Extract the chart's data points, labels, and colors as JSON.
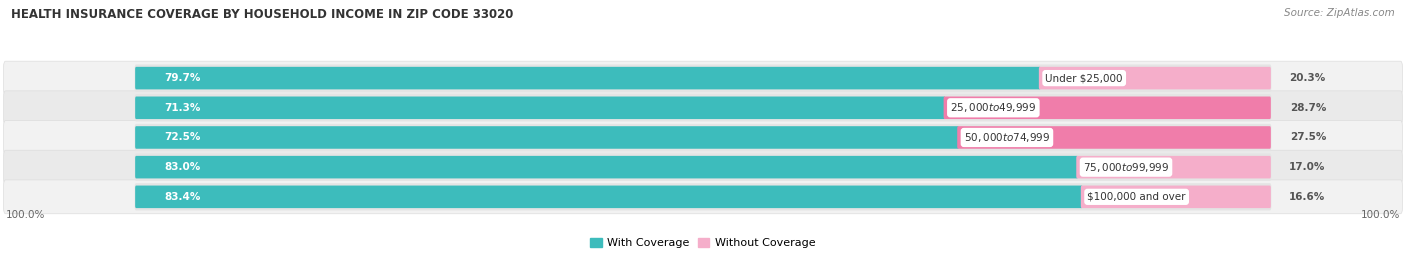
{
  "title": "HEALTH INSURANCE COVERAGE BY HOUSEHOLD INCOME IN ZIP CODE 33020",
  "source": "Source: ZipAtlas.com",
  "categories": [
    "Under $25,000",
    "$25,000 to $49,999",
    "$50,000 to $74,999",
    "$75,000 to $99,999",
    "$100,000 and over"
  ],
  "with_coverage": [
    79.7,
    71.3,
    72.5,
    83.0,
    83.4
  ],
  "without_coverage": [
    20.3,
    28.7,
    27.5,
    17.0,
    16.6
  ],
  "coverage_color": "#3DBCBC",
  "no_coverage_color": "#F07DAA",
  "no_coverage_color_light": "#F5AECA",
  "bar_bg_color": "#E8E8E8",
  "title_fontsize": 8.5,
  "source_fontsize": 7.5,
  "bar_label_fontsize": 7.5,
  "category_label_fontsize": 7.5,
  "axis_label_fontsize": 7.5,
  "legend_fontsize": 8.0
}
